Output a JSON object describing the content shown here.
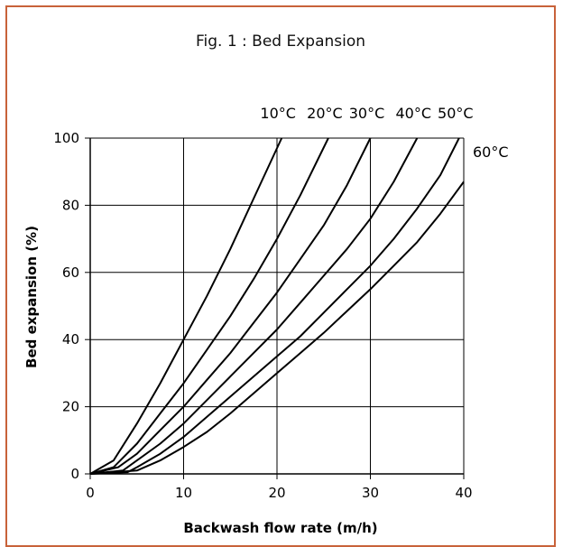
{
  "chart_data": {
    "type": "line",
    "title": "Fig. 1 : Bed Expansion",
    "xlabel": "Backwash flow rate (m/h)",
    "ylabel": "Bed expansion (%)",
    "xlim": [
      0,
      40
    ],
    "ylim": [
      0,
      100
    ],
    "xticks": [
      0,
      10,
      20,
      30,
      40
    ],
    "yticks": [
      0,
      20,
      40,
      60,
      80,
      100
    ],
    "grid": true,
    "series": [
      {
        "name": "10°C",
        "x": [
          0,
          2.5,
          5,
          7.5,
          10,
          12.5,
          15,
          17.5,
          20.5
        ],
        "y": [
          0,
          4,
          15,
          27,
          40,
          53,
          67,
          82,
          100
        ]
      },
      {
        "name": "20°C",
        "x": [
          0,
          2.5,
          5,
          7.5,
          10,
          12.5,
          15,
          17.5,
          20,
          22.5,
          25.5
        ],
        "y": [
          0,
          2,
          9,
          18,
          27,
          37,
          47,
          58,
          70,
          83,
          100
        ]
      },
      {
        "name": "30°C",
        "x": [
          0,
          3,
          5,
          7.5,
          10,
          12.5,
          15,
          17.5,
          20,
          22.5,
          25,
          27.5,
          30
        ],
        "y": [
          0,
          2,
          6,
          13,
          20,
          28,
          36,
          45,
          54,
          64,
          74,
          86,
          100
        ]
      },
      {
        "name": "40°C",
        "x": [
          0,
          3.5,
          5,
          7.5,
          10,
          12.5,
          15,
          17.5,
          20,
          22.5,
          25,
          27.5,
          30,
          32.5,
          35
        ],
        "y": [
          0,
          1,
          4,
          9,
          15,
          22,
          29,
          36,
          43,
          51,
          59,
          67,
          76,
          87,
          100
        ]
      },
      {
        "name": "50°C",
        "x": [
          0,
          4,
          5,
          7.5,
          10,
          12.5,
          15,
          17.5,
          20,
          22.5,
          25,
          27.5,
          30,
          32.5,
          35,
          37.5,
          39.5
        ],
        "y": [
          0,
          0.5,
          2,
          6,
          11,
          17,
          23,
          29,
          35,
          41,
          48,
          55,
          62,
          70,
          79,
          89,
          100
        ]
      },
      {
        "name": "60°C",
        "x": [
          0,
          5,
          7.5,
          10,
          12.5,
          15,
          17.5,
          20,
          22.5,
          25,
          27.5,
          30,
          32.5,
          35,
          37.5,
          40
        ],
        "y": [
          0,
          1,
          4,
          8,
          12.5,
          18,
          24,
          30,
          36,
          42,
          48.5,
          55,
          62,
          69,
          77.5,
          87
        ]
      }
    ]
  }
}
